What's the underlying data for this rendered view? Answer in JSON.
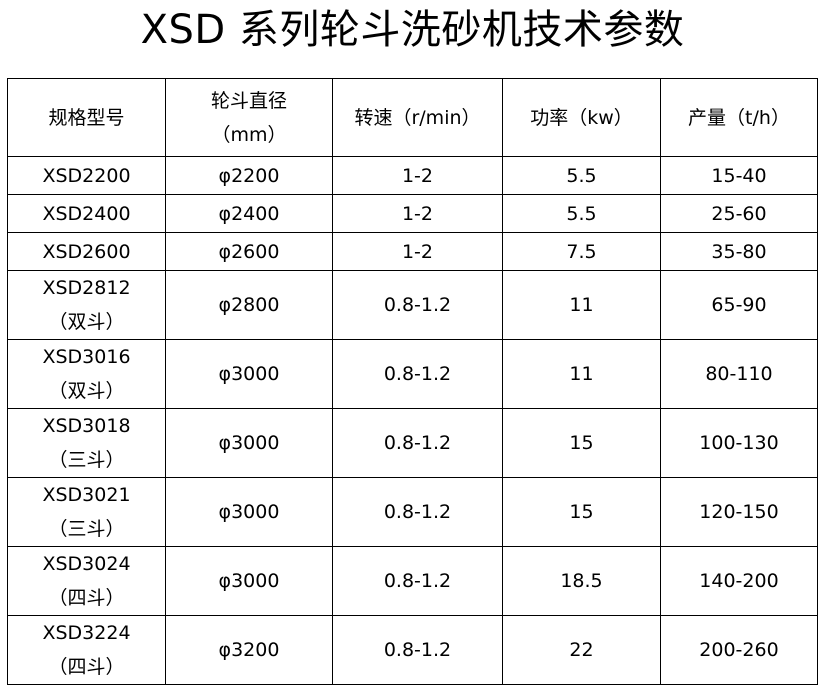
{
  "title": "XSD 系列轮斗洗砂机技术参数",
  "headers": [
    {
      "line1": "规格型号",
      "line2": ""
    },
    {
      "line1": "轮斗直径",
      "line2": "（mm）"
    },
    {
      "line1": "转速（r/min）",
      "line2": ""
    },
    {
      "line1": "功率（kw）",
      "line2": ""
    },
    {
      "line1": "产量（t/h）",
      "line2": ""
    }
  ],
  "rows": [
    {
      "model": "XSD2200",
      "note": "",
      "diameter": "φ2200",
      "speed": "1-2",
      "power": "5.5",
      "output": "15-40"
    },
    {
      "model": "XSD2400",
      "note": "",
      "diameter": "φ2400",
      "speed": "1-2",
      "power": "5.5",
      "output": "25-60"
    },
    {
      "model": "XSD2600",
      "note": "",
      "diameter": "φ2600",
      "speed": "1-2",
      "power": "7.5",
      "output": "35-80"
    },
    {
      "model": "XSD2812",
      "note": "（双斗）",
      "diameter": "φ2800",
      "speed": "0.8-1.2",
      "power": "11",
      "output": "65-90"
    },
    {
      "model": "XSD3016",
      "note": "（双斗）",
      "diameter": "φ3000",
      "speed": "0.8-1.2",
      "power": "11",
      "output": "80-110"
    },
    {
      "model": "XSD3018",
      "note": "（三斗）",
      "diameter": "φ3000",
      "speed": "0.8-1.2",
      "power": "15",
      "output": "100-130"
    },
    {
      "model": "XSD3021",
      "note": "（三斗）",
      "diameter": "φ3000",
      "speed": "0.8-1.2",
      "power": "15",
      "output": "120-150"
    },
    {
      "model": "XSD3024",
      "note": "（四斗）",
      "diameter": "φ3000",
      "speed": "0.8-1.2",
      "power": "18.5",
      "output": "140-200"
    },
    {
      "model": "XSD3224",
      "note": "（四斗）",
      "diameter": "φ3200",
      "speed": "0.8-1.2",
      "power": "22",
      "output": "200-260"
    }
  ]
}
